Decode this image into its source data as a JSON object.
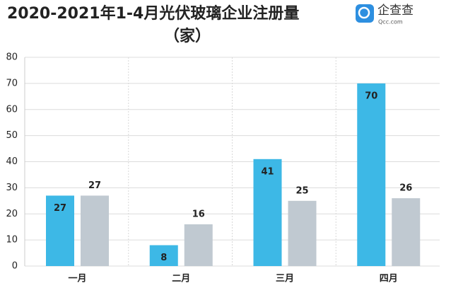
{
  "chart_data": {
    "type": "bar",
    "title": "2020-2021年1-4月光伏玻璃企业注册量",
    "subtitle": "（家）",
    "logo": {
      "text": "企查查",
      "sub": "Qcc.com"
    },
    "categories": [
      "一月",
      "二月",
      "三月",
      "四月"
    ],
    "series": [
      {
        "color": "#3db8e6",
        "values": [
          27,
          8,
          41,
          70
        ]
      },
      {
        "color": "#c0c9d1",
        "values": [
          27,
          16,
          25,
          26
        ]
      }
    ],
    "ylim": [
      0,
      80
    ],
    "yticks": [
      0,
      10,
      20,
      30,
      40,
      50,
      60,
      70,
      80
    ],
    "grid": true
  }
}
